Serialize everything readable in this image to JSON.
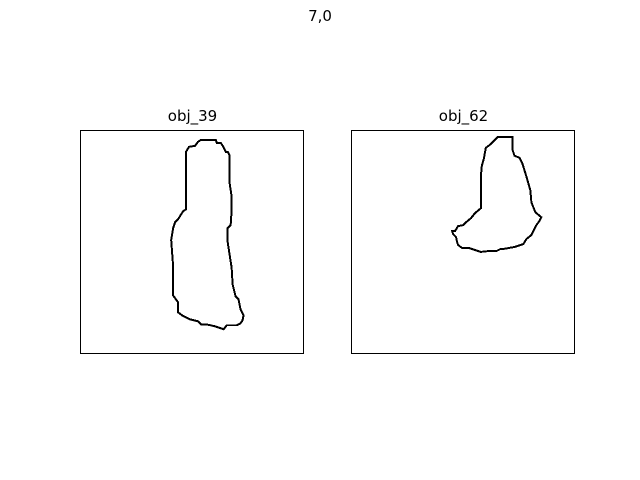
{
  "figure": {
    "title": "7,0"
  },
  "panels": [
    {
      "title": "obj_39"
    },
    {
      "title": "obj_62"
    }
  ],
  "colors": {
    "background": "#ffffff",
    "outline": "#000000"
  }
}
